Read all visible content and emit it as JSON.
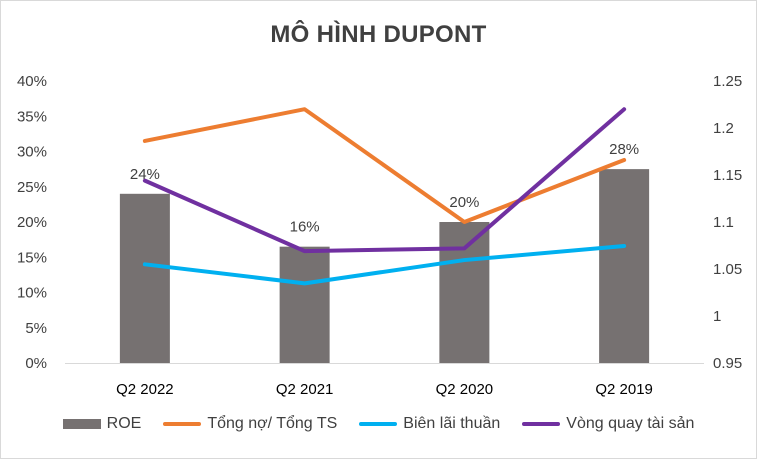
{
  "chart_data": {
    "type": "bar",
    "title": "MÔ HÌNH DUPONT",
    "categories": [
      "Q2 2022",
      "Q2 2021",
      "Q2 2020",
      "Q2 2019"
    ],
    "y_left": {
      "lim": [
        0,
        0.4
      ],
      "ticks": [
        0,
        0.05,
        0.1,
        0.15,
        0.2,
        0.25,
        0.3,
        0.35,
        0.4
      ],
      "tick_labels": [
        "0%",
        "5%",
        "10%",
        "15%",
        "20%",
        "25%",
        "30%",
        "35%",
        "40%"
      ]
    },
    "y_right": {
      "lim": [
        0.95,
        1.25
      ],
      "ticks": [
        0.95,
        1.0,
        1.05,
        1.1,
        1.15,
        1.2,
        1.25
      ],
      "tick_labels": [
        "0.95",
        "1",
        "1.05",
        "1.1",
        "1.15",
        "1.2",
        "1.25"
      ]
    },
    "series": [
      {
        "name": "ROE",
        "kind": "bar",
        "axis": "left",
        "color": "#767171",
        "values": [
          0.24,
          0.165,
          0.2,
          0.275
        ],
        "labels": [
          "24%",
          "16%",
          "20%",
          "28%"
        ]
      },
      {
        "name": "Tổng nợ/ Tổng TS",
        "kind": "line",
        "axis": "left",
        "color": "#ED7D31",
        "values": [
          0.315,
          0.36,
          0.2,
          0.288
        ]
      },
      {
        "name": "Biên lãi thuần",
        "kind": "line",
        "axis": "left",
        "color": "#00B0F0",
        "values": [
          0.14,
          0.113,
          0.146,
          0.166
        ]
      },
      {
        "name": "Vòng quay tài sản",
        "kind": "line",
        "axis": "right",
        "color": "#7030A0",
        "values": [
          1.144,
          1.069,
          1.072,
          1.22
        ]
      }
    ],
    "grid": false,
    "legend": "bottom"
  }
}
